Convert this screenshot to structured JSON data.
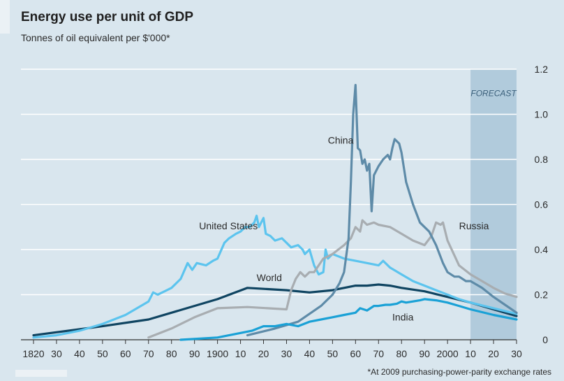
{
  "chart_data": {
    "type": "line",
    "title": "Energy use per unit of GDP",
    "subtitle": "Tonnes of oil equivalent per $'000*",
    "footnote": "*At 2009 purchasing-power-parity exchange rates",
    "forecast_label": "FORECAST",
    "forecast_range": [
      2010,
      2030
    ],
    "xlim": [
      1820,
      2030
    ],
    "ylim": [
      0,
      1.2
    ],
    "grid": true,
    "x_ticks": [
      {
        "value": 1820,
        "label": "1820"
      },
      {
        "value": 1830,
        "label": "30"
      },
      {
        "value": 1840,
        "label": "40"
      },
      {
        "value": 1850,
        "label": "50"
      },
      {
        "value": 1860,
        "label": "60"
      },
      {
        "value": 1870,
        "label": "70"
      },
      {
        "value": 1880,
        "label": "80"
      },
      {
        "value": 1890,
        "label": "90"
      },
      {
        "value": 1900,
        "label": "1900"
      },
      {
        "value": 1910,
        "label": "10"
      },
      {
        "value": 1920,
        "label": "20"
      },
      {
        "value": 1930,
        "label": "30"
      },
      {
        "value": 1940,
        "label": "40"
      },
      {
        "value": 1950,
        "label": "50"
      },
      {
        "value": 1960,
        "label": "60"
      },
      {
        "value": 1970,
        "label": "70"
      },
      {
        "value": 1980,
        "label": "80"
      },
      {
        "value": 1990,
        "label": "90"
      },
      {
        "value": 2000,
        "label": "2000"
      },
      {
        "value": 2010,
        "label": "10"
      },
      {
        "value": 2020,
        "label": "20"
      },
      {
        "value": 2030,
        "label": "30"
      }
    ],
    "y_ticks": [
      {
        "value": 0,
        "label": "0"
      },
      {
        "value": 0.2,
        "label": "0.2"
      },
      {
        "value": 0.4,
        "label": "0.4"
      },
      {
        "value": 0.6,
        "label": "0.6"
      },
      {
        "value": 0.8,
        "label": "0.8"
      },
      {
        "value": 1.0,
        "label": "1.0"
      },
      {
        "value": 1.2,
        "label": "1.2"
      }
    ],
    "series": [
      {
        "name": "World",
        "color": "#0f4461",
        "label_at": [
          1917,
          0.26
        ],
        "points": [
          [
            1820,
            0.02
          ],
          [
            1850,
            0.06
          ],
          [
            1870,
            0.09
          ],
          [
            1880,
            0.12
          ],
          [
            1900,
            0.18
          ],
          [
            1913,
            0.23
          ],
          [
            1930,
            0.22
          ],
          [
            1940,
            0.21
          ],
          [
            1950,
            0.22
          ],
          [
            1955,
            0.23
          ],
          [
            1960,
            0.24
          ],
          [
            1965,
            0.24
          ],
          [
            1970,
            0.245
          ],
          [
            1975,
            0.24
          ],
          [
            1980,
            0.23
          ],
          [
            1990,
            0.215
          ],
          [
            2000,
            0.19
          ],
          [
            2010,
            0.165
          ],
          [
            2020,
            0.135
          ],
          [
            2030,
            0.105
          ]
        ]
      },
      {
        "name": "United States",
        "color": "#5cc4ee",
        "label_at": [
          1892,
          0.49
        ],
        "points": [
          [
            1820,
            0.01
          ],
          [
            1830,
            0.02
          ],
          [
            1840,
            0.04
          ],
          [
            1850,
            0.07
          ],
          [
            1860,
            0.11
          ],
          [
            1870,
            0.17
          ],
          [
            1872,
            0.21
          ],
          [
            1874,
            0.2
          ],
          [
            1876,
            0.21
          ],
          [
            1880,
            0.23
          ],
          [
            1884,
            0.27
          ],
          [
            1887,
            0.34
          ],
          [
            1889,
            0.31
          ],
          [
            1891,
            0.34
          ],
          [
            1895,
            0.33
          ],
          [
            1898,
            0.35
          ],
          [
            1900,
            0.36
          ],
          [
            1903,
            0.43
          ],
          [
            1905,
            0.45
          ],
          [
            1908,
            0.47
          ],
          [
            1910,
            0.48
          ],
          [
            1912,
            0.5
          ],
          [
            1914,
            0.5
          ],
          [
            1916,
            0.52
          ],
          [
            1917,
            0.55
          ],
          [
            1918,
            0.5
          ],
          [
            1920,
            0.54
          ],
          [
            1921,
            0.47
          ],
          [
            1923,
            0.46
          ],
          [
            1925,
            0.44
          ],
          [
            1928,
            0.45
          ],
          [
            1930,
            0.43
          ],
          [
            1932,
            0.41
          ],
          [
            1935,
            0.42
          ],
          [
            1937,
            0.4
          ],
          [
            1938,
            0.38
          ],
          [
            1940,
            0.4
          ],
          [
            1942,
            0.33
          ],
          [
            1944,
            0.29
          ],
          [
            1946,
            0.3
          ],
          [
            1947,
            0.4
          ],
          [
            1948,
            0.36
          ],
          [
            1950,
            0.38
          ],
          [
            1955,
            0.36
          ],
          [
            1960,
            0.35
          ],
          [
            1965,
            0.34
          ],
          [
            1970,
            0.33
          ],
          [
            1972,
            0.35
          ],
          [
            1975,
            0.32
          ],
          [
            1980,
            0.29
          ],
          [
            1985,
            0.26
          ],
          [
            1990,
            0.24
          ],
          [
            1995,
            0.22
          ],
          [
            2000,
            0.2
          ],
          [
            2005,
            0.18
          ],
          [
            2010,
            0.165
          ],
          [
            2020,
            0.14
          ],
          [
            2030,
            0.115
          ]
        ]
      },
      {
        "name": "Russia",
        "color": "#a8adb1",
        "label_at": [
          2005,
          0.49
        ],
        "points": [
          [
            1870,
            0.01
          ],
          [
            1880,
            0.05
          ],
          [
            1890,
            0.1
          ],
          [
            1900,
            0.14
          ],
          [
            1913,
            0.145
          ],
          [
            1930,
            0.135
          ],
          [
            1932,
            0.22
          ],
          [
            1934,
            0.27
          ],
          [
            1936,
            0.3
          ],
          [
            1938,
            0.28
          ],
          [
            1940,
            0.3
          ],
          [
            1942,
            0.3
          ],
          [
            1944,
            0.33
          ],
          [
            1946,
            0.36
          ],
          [
            1950,
            0.38
          ],
          [
            1955,
            0.42
          ],
          [
            1958,
            0.45
          ],
          [
            1960,
            0.5
          ],
          [
            1962,
            0.48
          ],
          [
            1963,
            0.53
          ],
          [
            1965,
            0.51
          ],
          [
            1968,
            0.52
          ],
          [
            1970,
            0.51
          ],
          [
            1975,
            0.5
          ],
          [
            1980,
            0.47
          ],
          [
            1985,
            0.44
          ],
          [
            1990,
            0.42
          ],
          [
            1993,
            0.46
          ],
          [
            1995,
            0.52
          ],
          [
            1997,
            0.51
          ],
          [
            1998,
            0.52
          ],
          [
            2000,
            0.44
          ],
          [
            2005,
            0.33
          ],
          [
            2010,
            0.29
          ],
          [
            2015,
            0.26
          ],
          [
            2020,
            0.23
          ],
          [
            2025,
            0.205
          ],
          [
            2030,
            0.19
          ]
        ]
      },
      {
        "name": "China",
        "color": "#5e8ba8",
        "label_at": [
          1948,
          0.87
        ],
        "points": [
          [
            1913,
            0.02
          ],
          [
            1925,
            0.05
          ],
          [
            1935,
            0.08
          ],
          [
            1945,
            0.15
          ],
          [
            1950,
            0.2
          ],
          [
            1953,
            0.25
          ],
          [
            1955,
            0.3
          ],
          [
            1957,
            0.45
          ],
          [
            1958,
            0.7
          ],
          [
            1959,
            1.0
          ],
          [
            1960,
            1.13
          ],
          [
            1961,
            0.85
          ],
          [
            1962,
            0.84
          ],
          [
            1963,
            0.78
          ],
          [
            1964,
            0.8
          ],
          [
            1965,
            0.75
          ],
          [
            1966,
            0.78
          ],
          [
            1967,
            0.57
          ],
          [
            1968,
            0.73
          ],
          [
            1970,
            0.77
          ],
          [
            1972,
            0.8
          ],
          [
            1974,
            0.82
          ],
          [
            1975,
            0.8
          ],
          [
            1976,
            0.85
          ],
          [
            1977,
            0.89
          ],
          [
            1979,
            0.87
          ],
          [
            1980,
            0.83
          ],
          [
            1982,
            0.7
          ],
          [
            1985,
            0.6
          ],
          [
            1988,
            0.52
          ],
          [
            1990,
            0.5
          ],
          [
            1992,
            0.48
          ],
          [
            1995,
            0.42
          ],
          [
            1998,
            0.34
          ],
          [
            2000,
            0.3
          ],
          [
            2003,
            0.28
          ],
          [
            2005,
            0.28
          ],
          [
            2008,
            0.26
          ],
          [
            2010,
            0.26
          ],
          [
            2015,
            0.23
          ],
          [
            2020,
            0.19
          ],
          [
            2025,
            0.155
          ],
          [
            2030,
            0.12
          ]
        ]
      },
      {
        "name": "India",
        "color": "#1aa1d6",
        "label_at": [
          1976,
          0.085
        ],
        "points": [
          [
            1884,
            0.0
          ],
          [
            1900,
            0.01
          ],
          [
            1910,
            0.03
          ],
          [
            1915,
            0.04
          ],
          [
            1920,
            0.06
          ],
          [
            1925,
            0.06
          ],
          [
            1930,
            0.07
          ],
          [
            1935,
            0.06
          ],
          [
            1940,
            0.08
          ],
          [
            1945,
            0.09
          ],
          [
            1950,
            0.1
          ],
          [
            1955,
            0.11
          ],
          [
            1960,
            0.12
          ],
          [
            1962,
            0.14
          ],
          [
            1965,
            0.13
          ],
          [
            1968,
            0.15
          ],
          [
            1970,
            0.15
          ],
          [
            1973,
            0.155
          ],
          [
            1975,
            0.155
          ],
          [
            1978,
            0.16
          ],
          [
            1980,
            0.17
          ],
          [
            1982,
            0.165
          ],
          [
            1985,
            0.17
          ],
          [
            1988,
            0.175
          ],
          [
            1990,
            0.18
          ],
          [
            1995,
            0.175
          ],
          [
            2000,
            0.165
          ],
          [
            2005,
            0.15
          ],
          [
            2010,
            0.135
          ],
          [
            2020,
            0.11
          ],
          [
            2030,
            0.09
          ]
        ]
      }
    ]
  }
}
